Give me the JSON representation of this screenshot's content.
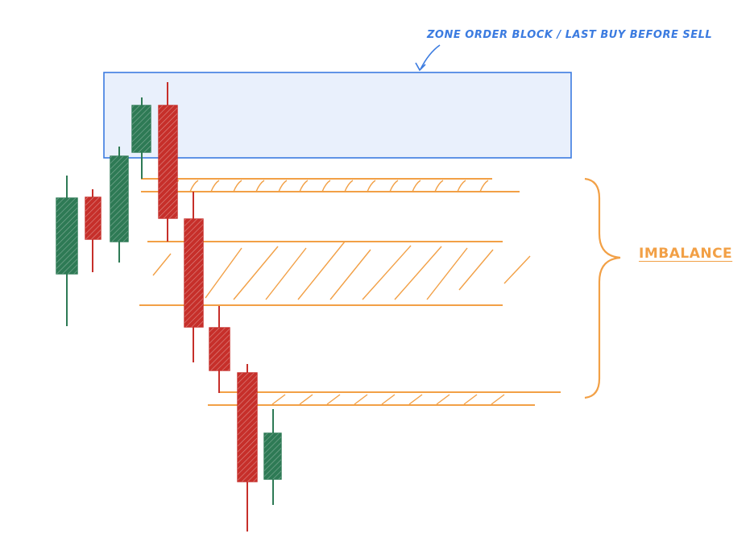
{
  "annotations": {
    "order_block_label": "ZONE ORDER BLOCK / LAST BUY BEFORE SELL",
    "imbalance_label": "IMBALANCE"
  },
  "colors": {
    "bullish": "#2e7a55",
    "bearish": "#c62f2a",
    "zone_fill": "#e9f0fc",
    "zone_stroke": "#3b7be0",
    "imbalance": "#f2a046"
  },
  "candles": [
    {
      "direction": "bullish"
    },
    {
      "direction": "bearish"
    },
    {
      "direction": "bullish"
    },
    {
      "direction": "bullish"
    },
    {
      "direction": "bearish"
    },
    {
      "direction": "bearish"
    },
    {
      "direction": "bearish"
    },
    {
      "direction": "bearish"
    },
    {
      "direction": "bullish"
    }
  ]
}
